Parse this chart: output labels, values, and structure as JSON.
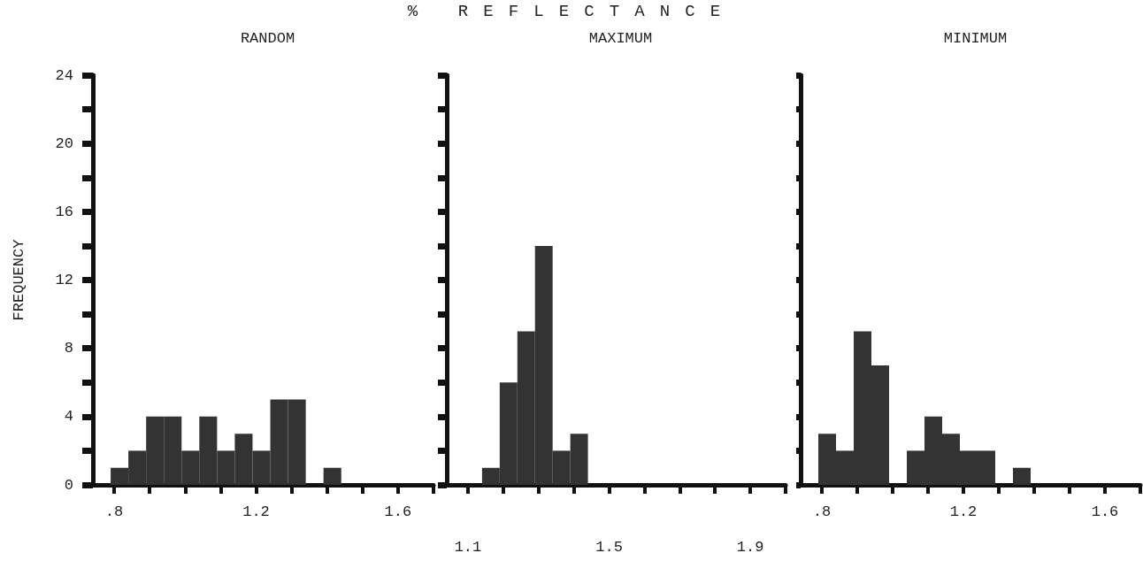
{
  "chart_data": [
    {
      "type": "other",
      "title": "% REFLECTANCE"
    },
    {
      "type": "histogram",
      "subtitle": "RANDOM",
      "ylabel": "FREQUENCY",
      "color": "#333333",
      "bins": [
        0.79,
        0.84,
        0.89,
        0.94,
        0.99,
        1.04,
        1.09,
        1.14,
        1.19,
        1.24,
        1.29,
        1.34,
        1.39,
        1.44
      ],
      "values": [
        1,
        2,
        4,
        4,
        2,
        4,
        2,
        3,
        2,
        5,
        5,
        0,
        1
      ],
      "xlim": [
        0.74,
        1.7
      ],
      "ylim": [
        0,
        24
      ],
      "xticks": [
        {
          "value": 0.8,
          "label": ".8"
        },
        {
          "value": 0.9,
          "label": null
        },
        {
          "value": 1.0,
          "label": null
        },
        {
          "value": 1.1,
          "label": null
        },
        1.2,
        {
          "value": 1.3,
          "label": null
        },
        {
          "value": 1.4,
          "label": null
        },
        {
          "value": 1.5,
          "label": null
        },
        1.6,
        {
          "value": 1.7,
          "label": null
        }
      ],
      "yticks": [
        0,
        {
          "value": 2,
          "label": null
        },
        4,
        {
          "value": 6,
          "label": null
        },
        8,
        {
          "value": 10,
          "label": null
        },
        12,
        {
          "value": 14,
          "label": null
        },
        16,
        {
          "value": 18,
          "label": null
        },
        20,
        {
          "value": 22,
          "label": null
        },
        24
      ],
      "grid": false
    },
    {
      "type": "histogram",
      "subtitle": "MAXIMUM",
      "color": "#333333",
      "bins": [
        1.14,
        1.19,
        1.24,
        1.29,
        1.34,
        1.39,
        1.44
      ],
      "values": [
        1,
        6,
        9,
        14,
        2,
        3
      ],
      "xlim": [
        1.04,
        2.0
      ],
      "ylim": [
        0,
        24
      ],
      "xticks": [
        1.1,
        {
          "value": 1.2,
          "label": null
        },
        {
          "value": 1.3,
          "label": null
        },
        {
          "value": 1.4,
          "label": null
        },
        1.5,
        {
          "value": 1.6,
          "label": null
        },
        {
          "value": 1.7,
          "label": null
        },
        {
          "value": 1.8,
          "label": null
        },
        1.9,
        {
          "value": 2.0,
          "label": null
        }
      ],
      "yticks": [
        0,
        {
          "value": 2,
          "label": null
        },
        4,
        {
          "value": 6,
          "label": null
        },
        8,
        {
          "value": 10,
          "label": null
        },
        12,
        {
          "value": 14,
          "label": null
        },
        16,
        {
          "value": 18,
          "label": null
        },
        20,
        {
          "value": 22,
          "label": null
        },
        24
      ],
      "tick_labels": "x",
      "grid": false
    },
    {
      "type": "histogram",
      "subtitle": "MINIMUM",
      "color": "#333333",
      "bins": [
        0.79,
        0.84,
        0.89,
        0.94,
        0.99,
        1.04,
        1.09,
        1.14,
        1.19,
        1.24,
        1.29,
        1.34,
        1.39
      ],
      "values": [
        3,
        2,
        9,
        7,
        0,
        2,
        4,
        3,
        2,
        2,
        0,
        1
      ],
      "xlim": [
        0.74,
        1.7
      ],
      "ylim": [
        0,
        24
      ],
      "xticks": [
        {
          "value": 0.8,
          "label": ".8"
        },
        {
          "value": 0.9,
          "label": null
        },
        {
          "value": 1.0,
          "label": null
        },
        {
          "value": 1.1,
          "label": null
        },
        1.2,
        {
          "value": 1.3,
          "label": null
        },
        {
          "value": 1.4,
          "label": null
        },
        {
          "value": 1.5,
          "label": null
        },
        1.6,
        {
          "value": 1.7,
          "label": null
        }
      ],
      "yticks": [
        0,
        {
          "value": 2,
          "label": null
        },
        4,
        {
          "value": 6,
          "label": null
        },
        8,
        {
          "value": 10,
          "label": null
        },
        12,
        {
          "value": 14,
          "label": null
        },
        16,
        {
          "value": 18,
          "label": null
        },
        20,
        {
          "value": 22,
          "label": null
        },
        24
      ],
      "tick_labels": "x",
      "grid": false
    }
  ]
}
